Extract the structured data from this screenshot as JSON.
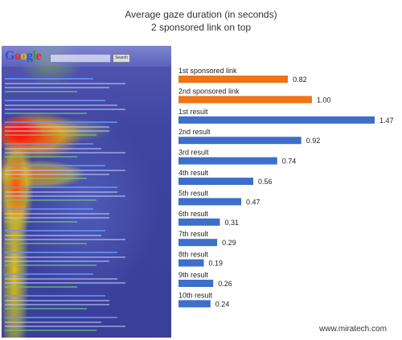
{
  "chart_data": {
    "type": "bar",
    "orientation": "horizontal",
    "title": "Average gaze duration (in seconds)",
    "subtitle": "2 sponsored link on top",
    "categories": [
      "1st sponsored link",
      "2nd sponsored link",
      "1st result",
      "2nd result",
      "3rd result",
      "4th result",
      "5th result",
      "6th result",
      "7th result",
      "8th result",
      "9th result",
      "10th result"
    ],
    "values": [
      0.82,
      1.0,
      1.47,
      0.92,
      0.74,
      0.56,
      0.47,
      0.31,
      0.29,
      0.19,
      0.26,
      0.24
    ],
    "value_labels": [
      "0.82",
      "1.00",
      "1.47",
      "0.92",
      "0.74",
      "0.56",
      "0.47",
      "0.31",
      "0.29",
      "0.19",
      "0.26",
      "0.24"
    ],
    "bar_colors": [
      "#f07416",
      "#f07416",
      "#3d6fcb",
      "#3d6fcb",
      "#3d6fcb",
      "#3d6fcb",
      "#3d6fcb",
      "#3d6fcb",
      "#3d6fcb",
      "#3d6fcb",
      "#3d6fcb",
      "#3d6fcb"
    ],
    "xlim": [
      0,
      1.5
    ],
    "grid": false,
    "legend": "none"
  },
  "heatmap_image": {
    "logo_text": "Google",
    "search_button": "Search",
    "colors": {
      "hot": "#ff1a10",
      "warm": "#ffd200",
      "cold": "#3a4096"
    }
  },
  "credit": "www.miratech.com"
}
